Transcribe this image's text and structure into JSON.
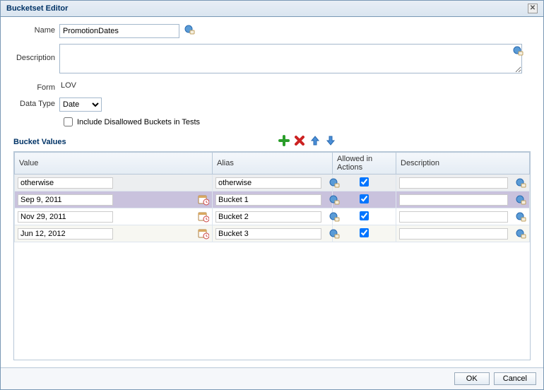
{
  "dialog": {
    "title": "Bucketset Editor"
  },
  "form": {
    "name_label": "Name",
    "name_value": "PromotionDates",
    "description_label": "Description",
    "description_value": "",
    "form_label": "Form",
    "form_value": "LOV",
    "datatype_label": "Data Type",
    "datatype_value": "Date",
    "include_disallowed_label": "Include Disallowed Buckets in Tests",
    "include_disallowed_checked": false
  },
  "section": {
    "title": "Bucket Values"
  },
  "columns": {
    "value": "Value",
    "alias": "Alias",
    "allowed": "Allowed in Actions",
    "description": "Description"
  },
  "rows": [
    {
      "value": "otherwise",
      "alias": "otherwise",
      "allowed": true,
      "description": "",
      "class": "first",
      "has_date_icon": false
    },
    {
      "value": "Sep 9, 2011",
      "alias": "Bucket 1",
      "allowed": true,
      "description": "",
      "class": "selected",
      "has_date_icon": true
    },
    {
      "value": "Nov 29, 2011",
      "alias": "Bucket 2",
      "allowed": true,
      "description": "",
      "class": "",
      "has_date_icon": true
    },
    {
      "value": "Jun 12, 2012",
      "alias": "Bucket 3",
      "allowed": true,
      "description": "",
      "class": "odd",
      "has_date_icon": true
    }
  ],
  "buttons": {
    "ok": "OK",
    "cancel": "Cancel"
  },
  "colors": {
    "accent": "#003366",
    "border": "#b8c8d8",
    "selected_row": "#c9c2dd"
  },
  "col_widths": {
    "value": 280,
    "alias": 170,
    "allowed": 90,
    "description": 170
  }
}
